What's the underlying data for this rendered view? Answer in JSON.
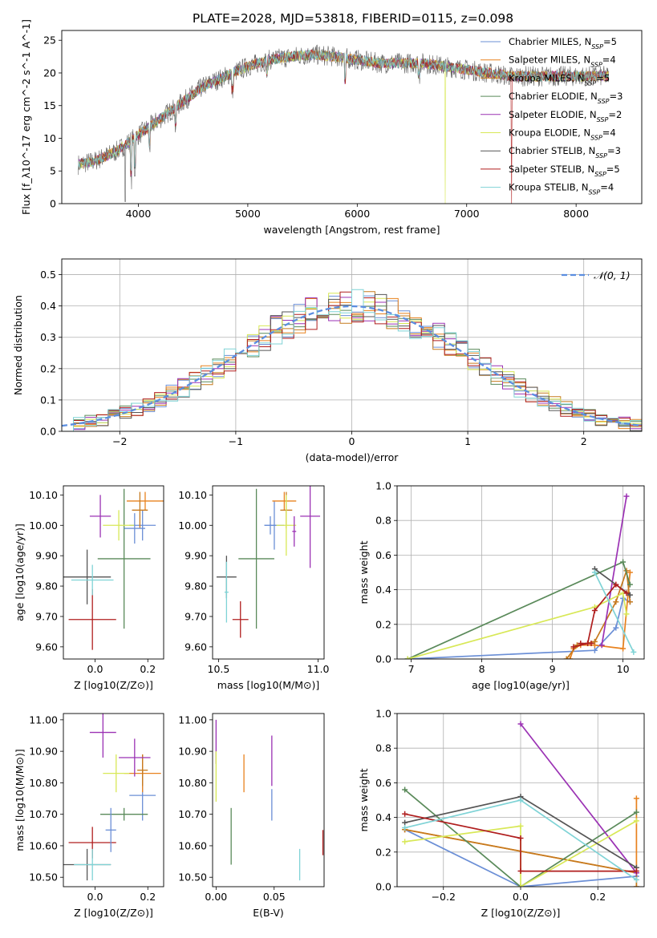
{
  "figure": {
    "title": "PLATE=2028, MJD=53818, FIBERID=0115, z=0.098"
  },
  "series": [
    {
      "name": "Chabrier MILES",
      "nssp": "5",
      "color": "#6b8fd6"
    },
    {
      "name": "Salpeter MILES",
      "nssp": "4",
      "color": "#e8821e"
    },
    {
      "name": "Kroupa MILES",
      "nssp": "5",
      "color": "#c67a1e"
    },
    {
      "name": "Chabrier ELODIE",
      "nssp": "3",
      "color": "#5a8a5a"
    },
    {
      "name": "Salpeter ELODIE",
      "nssp": "2",
      "color": "#9b32b4"
    },
    {
      "name": "Kroupa ELODIE",
      "nssp": "4",
      "color": "#d8e857"
    },
    {
      "name": "Chabrier STELIB",
      "nssp": "3",
      "color": "#555555"
    },
    {
      "name": "Salpeter STELIB",
      "nssp": "5",
      "color": "#b01e1e"
    },
    {
      "name": "Kroupa STELIB",
      "nssp": "4",
      "color": "#7fd3d6"
    }
  ],
  "chart_data": [
    {
      "id": "spectrum",
      "type": "line",
      "xlabel": "wavelength [Angstrom, rest frame]",
      "ylabel": "Flux [f_λ10^-17 erg cm^-2 s^-1 A^-1]",
      "xlim": [
        3300,
        8600
      ],
      "ylim": [
        0,
        26.5
      ],
      "xticks": [
        4000,
        5000,
        6000,
        7000,
        8000
      ],
      "yticks": [
        0,
        5,
        10,
        15,
        20,
        25
      ],
      "continuum": {
        "x": [
          3450,
          3600,
          3800,
          4000,
          4200,
          4400,
          4600,
          4800,
          5000,
          5200,
          5400,
          5600,
          5800,
          6000,
          6200,
          6400,
          6600,
          6800,
          7000,
          7200,
          7400
        ],
        "y": [
          6,
          6.5,
          8,
          10.5,
          13,
          15.5,
          18,
          19.5,
          21,
          22,
          22.5,
          22.8,
          22.5,
          22,
          21.5,
          21.5,
          21.5,
          21,
          20.5,
          20,
          19.5
        ]
      },
      "model_x_range": [
        3450,
        8300
      ],
      "legend": "upper right"
    },
    {
      "id": "residuals",
      "type": "histogram",
      "xlabel": "(data-model)/error",
      "ylabel": "Normed distribution",
      "xlim": [
        -2.5,
        2.5
      ],
      "ylim": [
        0,
        0.55
      ],
      "xticks": [
        -2,
        -1,
        0,
        1,
        2
      ],
      "yticks": [
        0,
        0.1,
        0.2,
        0.3,
        0.4,
        0.5
      ],
      "bins": 50,
      "reference": {
        "name": "𝒩(0, 1)",
        "mean": 0,
        "sigma": 1
      },
      "legend": "upper right",
      "grid": true
    },
    {
      "id": "age-vs-Z",
      "type": "errorbar",
      "xlabel": "Z [log10(Z/Z⊙)]",
      "ylabel": "age [log10(age/yr)]",
      "xlim": [
        -0.12,
        0.26
      ],
      "ylim": [
        9.56,
        10.13
      ],
      "xticks": [
        0.0,
        0.2
      ],
      "yticks": [
        9.6,
        9.7,
        9.8,
        9.9,
        10.0,
        10.1
      ],
      "points": [
        {
          "s": 0,
          "x": 0.18,
          "xerr": 0.05,
          "y": 10.0,
          "yerr": 0.05
        },
        {
          "s": 1,
          "x": 0.19,
          "xerr": 0.07,
          "y": 10.08,
          "yerr": 0.03
        },
        {
          "s": 2,
          "x": 0.17,
          "xerr": 0.03,
          "y": 10.05,
          "yerr": 0.06
        },
        {
          "s": 3,
          "x": 0.11,
          "xerr": 0.1,
          "y": 9.89,
          "yerr": 0.23
        },
        {
          "s": 4,
          "x": 0.02,
          "xerr": 0.04,
          "y": 10.03,
          "yerr": 0.07
        },
        {
          "s": 5,
          "x": 0.09,
          "xerr": 0.06,
          "y": 10.0,
          "yerr": 0.05
        },
        {
          "s": 6,
          "x": -0.03,
          "xerr": 0.09,
          "y": 9.83,
          "yerr": 0.09
        },
        {
          "s": 7,
          "x": -0.01,
          "xerr": 0.09,
          "y": 9.69,
          "yerr": 0.1
        },
        {
          "s": 8,
          "x": -0.01,
          "xerr": 0.08,
          "y": 9.82,
          "yerr": 0.05
        },
        {
          "s": 0,
          "x": 0.15,
          "xerr": 0.04,
          "y": 9.99,
          "yerr": 0.05
        }
      ]
    },
    {
      "id": "age-vs-mass",
      "type": "errorbar",
      "xlabel": "mass [log10(M/M⊙)]",
      "ylabel": "",
      "xlim": [
        10.47,
        11.03
      ],
      "ylim": [
        9.56,
        10.13
      ],
      "xticks": [
        10.5,
        11.0
      ],
      "yticks": [
        9.6,
        9.7,
        9.8,
        9.9,
        10.0,
        10.1
      ],
      "points": [
        {
          "s": 0,
          "x": 10.78,
          "xerr": 0.05,
          "y": 10.0,
          "yerr": 0.08
        },
        {
          "s": 1,
          "x": 10.83,
          "xerr": 0.06,
          "y": 10.08,
          "yerr": 0.03
        },
        {
          "s": 2,
          "x": 10.84,
          "xerr": 0.03,
          "y": 10.05,
          "yerr": 0.06
        },
        {
          "s": 3,
          "x": 10.69,
          "xerr": 0.09,
          "y": 9.89,
          "yerr": 0.23
        },
        {
          "s": 4,
          "x": 10.96,
          "xerr": 0.05,
          "y": 10.03,
          "yerr": 0.17
        },
        {
          "s": 5,
          "x": 10.84,
          "xerr": 0.05,
          "y": 10.0,
          "yerr": 0.1
        },
        {
          "s": 6,
          "x": 10.54,
          "xerr": 0.05,
          "y": 9.83,
          "yerr": 0.07
        },
        {
          "s": 7,
          "x": 10.61,
          "xerr": 0.04,
          "y": 9.69,
          "yerr": 0.06
        },
        {
          "s": 8,
          "x": 10.54,
          "xerr": 0.01,
          "y": 9.78,
          "yerr": 0.1
        },
        {
          "s": 0,
          "x": 10.76,
          "xerr": 0.03,
          "y": 10.0,
          "yerr": 0.03
        },
        {
          "s": 4,
          "x": 10.88,
          "xerr": 0.01,
          "y": 9.98,
          "yerr": 0.05
        }
      ]
    },
    {
      "id": "weight-vs-age",
      "type": "line",
      "xlabel": "age [log10(age/yr)]",
      "ylabel": "mass weight",
      "xlim": [
        6.8,
        10.3
      ],
      "ylim": [
        0,
        1.0
      ],
      "xticks": [
        7,
        8,
        9,
        10
      ],
      "yticks": [
        0.0,
        0.2,
        0.4,
        0.6,
        0.8,
        1.0
      ],
      "grid": true,
      "lines": [
        {
          "s": 0,
          "x": [
            6.95,
            9.6,
            9.9,
            10.0,
            10.1
          ],
          "y": [
            0.0,
            0.05,
            0.18,
            0.35,
            0.33
          ]
        },
        {
          "s": 1,
          "x": [
            9.25,
            9.3,
            9.4,
            9.6,
            10.0,
            10.1
          ],
          "y": [
            0.0,
            0.06,
            0.08,
            0.08,
            0.06,
            0.5
          ]
        },
        {
          "s": 2,
          "x": [
            9.2,
            9.35,
            9.6,
            9.9,
            10.05,
            10.1
          ],
          "y": [
            0.0,
            0.08,
            0.1,
            0.33,
            0.51,
            0.33
          ]
        },
        {
          "s": 3,
          "x": [
            6.95,
            10.0,
            10.1
          ],
          "y": [
            0.0,
            0.56,
            0.43
          ]
        },
        {
          "s": 4,
          "x": [
            9.7,
            10.05
          ],
          "y": [
            0.08,
            0.94
          ]
        },
        {
          "s": 5,
          "x": [
            6.95,
            9.6,
            10.0,
            10.05
          ],
          "y": [
            0.0,
            0.3,
            0.38,
            0.26
          ]
        },
        {
          "s": 6,
          "x": [
            9.6,
            10.1
          ],
          "y": [
            0.52,
            0.37
          ]
        },
        {
          "s": 7,
          "x": [
            9.3,
            9.5,
            9.6,
            9.9,
            10.05
          ],
          "y": [
            0.07,
            0.09,
            0.28,
            0.43,
            0.38
          ]
        },
        {
          "s": 8,
          "x": [
            9.6,
            10.15
          ],
          "y": [
            0.5,
            0.04
          ]
        },
        {
          "s": 7,
          "x": [
            9.4,
            9.55
          ],
          "y": [
            0.09,
            0.09
          ]
        }
      ]
    },
    {
      "id": "mass-vs-Z",
      "type": "errorbar",
      "xlabel": "Z [log10(Z/Z⊙)]",
      "ylabel": "mass [log10(M/M⊙)]",
      "xlim": [
        -0.12,
        0.26
      ],
      "ylim": [
        10.47,
        11.02
      ],
      "xticks": [
        0.0,
        0.2
      ],
      "yticks": [
        10.5,
        10.6,
        10.7,
        10.8,
        10.9,
        11.0
      ],
      "points": [
        {
          "s": 0,
          "x": 0.18,
          "xerr": 0.05,
          "y": 10.76,
          "yerr": 0.08
        },
        {
          "s": 1,
          "x": 0.18,
          "xerr": 0.07,
          "y": 10.83,
          "yerr": 0.06
        },
        {
          "s": 2,
          "x": 0.18,
          "xerr": 0.02,
          "y": 10.84,
          "yerr": 0.05
        },
        {
          "s": 3,
          "x": 0.11,
          "xerr": 0.09,
          "y": 10.7,
          "yerr": 0.02
        },
        {
          "s": 4,
          "x": 0.03,
          "xerr": 0.05,
          "y": 10.96,
          "yerr": 0.08
        },
        {
          "s": 5,
          "x": 0.08,
          "xerr": 0.05,
          "y": 10.83,
          "yerr": 0.06
        },
        {
          "s": 6,
          "x": -0.03,
          "xerr": 0.09,
          "y": 10.54,
          "yerr": 0.05
        },
        {
          "s": 7,
          "x": -0.01,
          "xerr": 0.09,
          "y": 10.61,
          "yerr": 0.05
        },
        {
          "s": 8,
          "x": -0.01,
          "xerr": 0.07,
          "y": 10.54,
          "yerr": 0.05
        },
        {
          "s": 0,
          "x": 0.06,
          "xerr": 0.02,
          "y": 10.65,
          "yerr": 0.07
        },
        {
          "s": 4,
          "x": 0.15,
          "xerr": 0.06,
          "y": 10.88,
          "yerr": 0.06
        }
      ]
    },
    {
      "id": "mass-vs-EBV",
      "type": "errorbar",
      "xlabel": "E(B-V)",
      "ylabel": "",
      "xlim": [
        -0.003,
        0.093
      ],
      "ylim": [
        10.47,
        11.02
      ],
      "xticks": [
        0.0,
        0.05
      ],
      "yticks": [
        10.5,
        10.6,
        10.7,
        10.8,
        10.9,
        11.0
      ],
      "points": [
        {
          "s": 4,
          "x": 0.0,
          "xerr": 0,
          "y": 10.93,
          "yerr": 0.07
        },
        {
          "s": 5,
          "x": 0.0,
          "xerr": 0,
          "y": 10.82,
          "yerr": 0.08
        },
        {
          "s": 3,
          "x": 0.013,
          "xerr": 0,
          "y": 10.63,
          "yerr": 0.09
        },
        {
          "s": 1,
          "x": 0.024,
          "xerr": 0,
          "y": 10.83,
          "yerr": 0.06
        },
        {
          "s": 0,
          "x": 0.048,
          "xerr": 0,
          "y": 10.73,
          "yerr": 0.05
        },
        {
          "s": 4,
          "x": 0.048,
          "xerr": 0,
          "y": 10.87,
          "yerr": 0.08
        },
        {
          "s": 8,
          "x": 0.072,
          "xerr": 0,
          "y": 10.54,
          "yerr": 0.05
        },
        {
          "s": 7,
          "x": 0.092,
          "xerr": 0,
          "y": 10.61,
          "yerr": 0.04
        }
      ]
    },
    {
      "id": "weight-vs-Z",
      "type": "line",
      "xlabel": "Z [log10(Z/Z⊙)]",
      "ylabel": "mass weight",
      "xlim": [
        -0.32,
        0.32
      ],
      "ylim": [
        0,
        1.0
      ],
      "xticks": [
        -0.2,
        0.0,
        0.2
      ],
      "yticks": [
        0.0,
        0.2,
        0.4,
        0.6,
        0.8,
        1.0
      ],
      "grid": true,
      "lines": [
        {
          "s": 0,
          "x": [
            -0.3,
            0.0,
            0.3
          ],
          "y": [
            0.33,
            0.0,
            0.06
          ]
        },
        {
          "s": 1,
          "x": [
            -0.3,
            0.3,
            0.3
          ],
          "y": [
            0.33,
            0.08,
            0.51
          ]
        },
        {
          "s": 2,
          "x": [
            -0.3,
            0.3,
            0.3
          ],
          "y": [
            0.33,
            0.08,
            0.0
          ]
        },
        {
          "s": 3,
          "x": [
            -0.3,
            0.0,
            0.3
          ],
          "y": [
            0.56,
            0.0,
            0.43
          ]
        },
        {
          "s": 4,
          "x": [
            0.0,
            0.3
          ],
          "y": [
            0.94,
            0.08
          ]
        },
        {
          "s": 5,
          "x": [
            -0.3,
            0.0,
            0.0,
            0.3
          ],
          "y": [
            0.26,
            0.35,
            0.0,
            0.38
          ]
        },
        {
          "s": 6,
          "x": [
            -0.3,
            0.0,
            0.3
          ],
          "y": [
            0.37,
            0.52,
            0.11
          ]
        },
        {
          "s": 7,
          "x": [
            -0.3,
            0.0,
            0.0,
            0.3
          ],
          "y": [
            0.42,
            0.28,
            0.09,
            0.09
          ]
        },
        {
          "s": 8,
          "x": [
            -0.3,
            0.0,
            0.3
          ],
          "y": [
            0.34,
            0.5,
            0.04
          ]
        }
      ]
    }
  ]
}
